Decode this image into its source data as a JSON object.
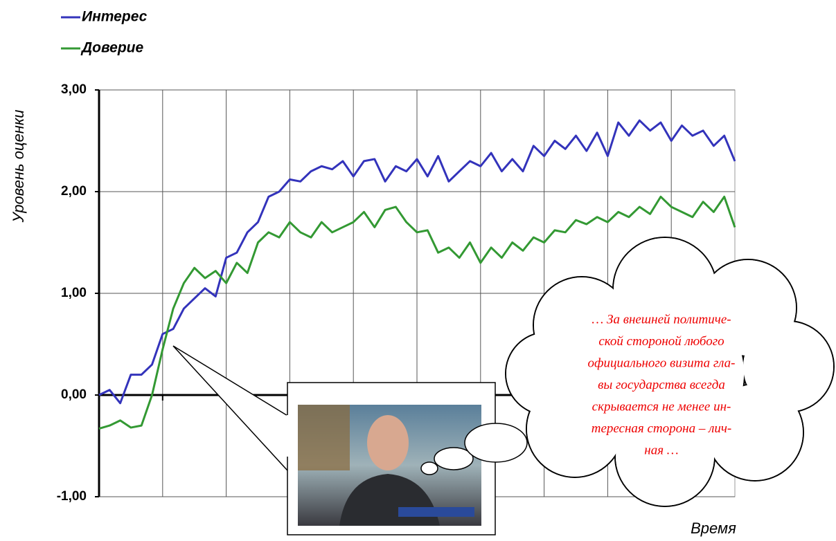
{
  "chart_data": {
    "type": "line",
    "y_label": "Уровень оценки",
    "x_label": "Время",
    "categories": [
      null,
      null,
      null,
      null,
      null,
      null,
      null,
      null,
      null,
      null,
      null,
      null,
      null,
      null,
      null,
      null,
      null,
      null,
      null,
      null,
      null,
      null,
      null,
      null,
      null,
      null,
      null,
      null,
      null,
      null,
      null,
      null,
      null,
      null,
      null,
      null,
      null,
      null,
      null,
      null,
      null,
      null,
      null,
      null,
      null,
      null,
      null,
      null,
      null,
      null,
      null,
      null,
      null,
      null,
      null,
      null,
      null,
      null,
      null,
      null,
      null
    ],
    "series": [
      {
        "name": "Интерес",
        "color": "#3333bb",
        "values": [
          0.0,
          0.05,
          -0.08,
          0.2,
          0.2,
          0.3,
          0.6,
          0.65,
          0.85,
          0.95,
          1.05,
          0.97,
          1.35,
          1.4,
          1.6,
          1.7,
          1.95,
          2.0,
          2.12,
          2.1,
          2.2,
          2.25,
          2.22,
          2.3,
          2.15,
          2.3,
          2.32,
          2.1,
          2.25,
          2.2,
          2.32,
          2.15,
          2.35,
          2.1,
          2.2,
          2.3,
          2.25,
          2.38,
          2.2,
          2.32,
          2.2,
          2.45,
          2.35,
          2.5,
          2.42,
          2.55,
          2.4,
          2.58,
          2.35,
          2.68,
          2.55,
          2.7,
          2.6,
          2.68,
          2.5,
          2.65,
          2.55,
          2.6,
          2.45,
          2.55,
          2.3
        ]
      },
      {
        "name": "Доверие",
        "color": "#339933",
        "values": [
          -0.33,
          -0.3,
          -0.25,
          -0.32,
          -0.3,
          0.0,
          0.45,
          0.85,
          1.1,
          1.25,
          1.15,
          1.22,
          1.1,
          1.3,
          1.2,
          1.5,
          1.6,
          1.55,
          1.7,
          1.6,
          1.55,
          1.7,
          1.6,
          1.65,
          1.7,
          1.8,
          1.65,
          1.82,
          1.85,
          1.7,
          1.6,
          1.62,
          1.4,
          1.45,
          1.35,
          1.5,
          1.3,
          1.45,
          1.35,
          1.5,
          1.42,
          1.55,
          1.5,
          1.62,
          1.6,
          1.72,
          1.68,
          1.75,
          1.7,
          1.8,
          1.75,
          1.85,
          1.78,
          1.95,
          1.85,
          1.8,
          1.75,
          1.9,
          1.8,
          1.95,
          1.65
        ]
      }
    ],
    "ylim": [
      -1,
      3
    ],
    "yticks": [
      {
        "value": -1,
        "label": "-1,00"
      },
      {
        "value": 0,
        "label": "0,00"
      },
      {
        "value": 1,
        "label": "1,00"
      },
      {
        "value": 2,
        "label": "2,00"
      },
      {
        "value": 3,
        "label": "3,00"
      }
    ],
    "grid": true,
    "legend": "top-left",
    "annotations": {
      "cloud_text": [
        "… За внешней политиче-",
        "ской стороной любого",
        "официального визита гла-",
        "вы государства всегда",
        "скрывается не менее ин-",
        "тересная сторона – лич-",
        "ная …"
      ]
    }
  }
}
